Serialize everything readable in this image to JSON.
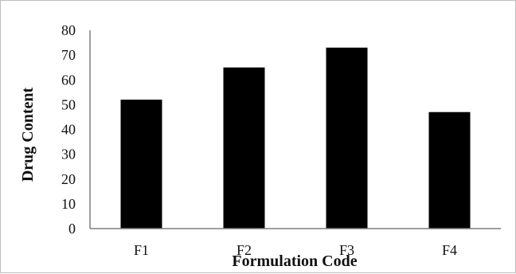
{
  "chart_data": {
    "type": "bar",
    "categories": [
      "F1",
      "F2",
      "F3",
      "F4"
    ],
    "values": [
      52,
      65,
      73,
      47
    ],
    "xlabel": "Formulation Code",
    "ylabel": "Drug Content",
    "ylim": [
      0,
      80
    ],
    "yticks": [
      0,
      10,
      20,
      30,
      40,
      50,
      60,
      70,
      80
    ],
    "grid": false,
    "legend": "none",
    "bar_color": "#000000",
    "axis_color": "#7f7f7f"
  }
}
